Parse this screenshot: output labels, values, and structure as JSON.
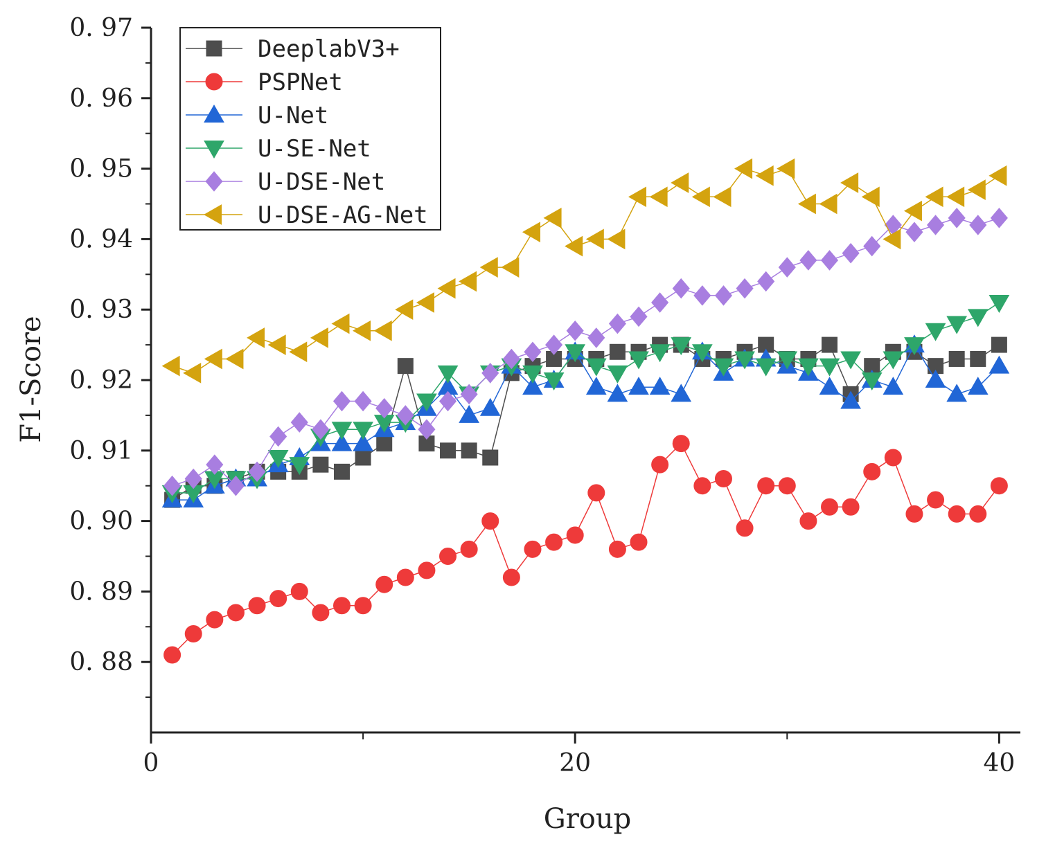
{
  "chart_data": {
    "type": "line",
    "xlabel": "Group",
    "ylabel": "F1-Score",
    "xlim": [
      0,
      41
    ],
    "ylim": [
      0.87,
      0.97
    ],
    "xticks": [
      0,
      20,
      40
    ],
    "xtick_labels": [
      "0",
      "20",
      "40"
    ],
    "yticks": [
      0.88,
      0.89,
      0.9,
      0.91,
      0.92,
      0.93,
      0.94,
      0.95,
      0.96,
      0.97
    ],
    "ytick_labels": [
      "0. 88",
      "0. 89",
      "0. 90",
      "0. 91",
      "0. 92",
      "0. 93",
      "0. 94",
      "0. 95",
      "0. 96",
      "0. 97"
    ],
    "grid": false,
    "legend_position": "top-left",
    "x": [
      1,
      2,
      3,
      4,
      5,
      6,
      7,
      8,
      9,
      10,
      11,
      12,
      13,
      14,
      15,
      16,
      17,
      18,
      19,
      20,
      21,
      22,
      23,
      24,
      25,
      26,
      27,
      28,
      29,
      30,
      31,
      32,
      33,
      34,
      35,
      36,
      37,
      38,
      39,
      40
    ],
    "series": [
      {
        "name": "DeeplabV3+",
        "color": "#4d4d4d",
        "marker": "square",
        "values": [
          0.903,
          0.905,
          0.905,
          0.906,
          0.907,
          0.907,
          0.907,
          0.908,
          0.907,
          0.909,
          0.911,
          0.922,
          0.911,
          0.91,
          0.91,
          0.909,
          0.921,
          0.922,
          0.923,
          0.923,
          0.923,
          0.924,
          0.924,
          0.925,
          0.925,
          0.923,
          0.923,
          0.924,
          0.925,
          0.923,
          0.923,
          0.925,
          0.918,
          0.922,
          0.924,
          0.924,
          0.922,
          0.923,
          0.923,
          0.925
        ]
      },
      {
        "name": "PSPNet",
        "color": "#ee3a3a",
        "marker": "circle",
        "values": [
          0.881,
          0.884,
          0.886,
          0.887,
          0.888,
          0.889,
          0.89,
          0.887,
          0.888,
          0.888,
          0.891,
          0.892,
          0.893,
          0.895,
          0.896,
          0.9,
          0.892,
          0.896,
          0.897,
          0.898,
          0.904,
          0.896,
          0.897,
          0.908,
          0.911,
          0.905,
          0.906,
          0.899,
          0.905,
          0.905,
          0.9,
          0.902,
          0.902,
          0.907,
          0.909,
          0.901,
          0.903,
          0.901,
          0.901,
          0.905
        ]
      },
      {
        "name": "U-Net",
        "color": "#2166d6",
        "marker": "triangle-up",
        "values": [
          0.903,
          0.903,
          0.905,
          0.906,
          0.906,
          0.908,
          0.909,
          0.911,
          0.911,
          0.911,
          0.913,
          0.914,
          0.916,
          0.919,
          0.915,
          0.916,
          0.922,
          0.919,
          0.92,
          0.924,
          0.919,
          0.918,
          0.919,
          0.919,
          0.918,
          0.924,
          0.921,
          0.923,
          0.923,
          0.922,
          0.921,
          0.919,
          0.917,
          0.92,
          0.919,
          0.925,
          0.92,
          0.918,
          0.919,
          0.922
        ]
      },
      {
        "name": "U-SE-Net",
        "color": "#2ea66a",
        "marker": "triangle-down",
        "values": [
          0.904,
          0.904,
          0.906,
          0.906,
          0.906,
          0.909,
          0.908,
          0.912,
          0.913,
          0.913,
          0.914,
          0.914,
          0.917,
          0.921,
          0.918,
          0.921,
          0.922,
          0.921,
          0.92,
          0.924,
          0.922,
          0.921,
          0.923,
          0.924,
          0.925,
          0.924,
          0.922,
          0.923,
          0.922,
          0.923,
          0.922,
          0.922,
          0.923,
          0.92,
          0.923,
          0.925,
          0.927,
          0.928,
          0.929,
          0.931
        ]
      },
      {
        "name": "U-DSE-Net",
        "color": "#a87ee0",
        "marker": "diamond",
        "values": [
          0.905,
          0.906,
          0.908,
          0.905,
          0.907,
          0.912,
          0.914,
          0.913,
          0.917,
          0.917,
          0.916,
          0.915,
          0.913,
          0.917,
          0.918,
          0.921,
          0.923,
          0.924,
          0.925,
          0.927,
          0.926,
          0.928,
          0.929,
          0.931,
          0.933,
          0.932,
          0.932,
          0.933,
          0.934,
          0.936,
          0.937,
          0.937,
          0.938,
          0.939,
          0.942,
          0.941,
          0.942,
          0.943,
          0.942,
          0.943
        ]
      },
      {
        "name": "U-DSE-AG-Net",
        "color": "#d4a30f",
        "marker": "triangle-left",
        "values": [
          0.922,
          0.921,
          0.923,
          0.923,
          0.926,
          0.925,
          0.924,
          0.926,
          0.928,
          0.927,
          0.927,
          0.93,
          0.931,
          0.933,
          0.934,
          0.936,
          0.936,
          0.941,
          0.943,
          0.939,
          0.94,
          0.94,
          0.946,
          0.946,
          0.948,
          0.946,
          0.946,
          0.95,
          0.949,
          0.95,
          0.945,
          0.945,
          0.948,
          0.946,
          0.94,
          0.944,
          0.946,
          0.946,
          0.947,
          0.949
        ]
      }
    ]
  }
}
